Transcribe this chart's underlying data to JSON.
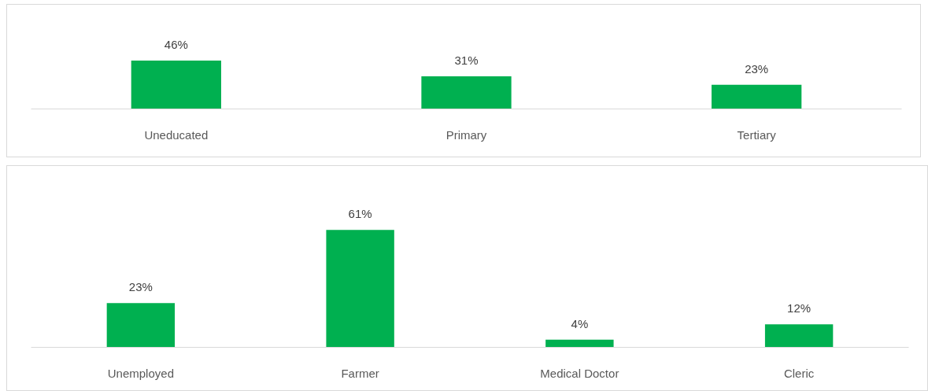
{
  "chart_data": [
    {
      "type": "bar",
      "categories": [
        "Uneducated",
        "Primary",
        "Tertiary"
      ],
      "values": [
        46,
        31,
        23
      ],
      "value_labels": [
        "46%",
        "31%",
        "23%"
      ],
      "color": "#00b050",
      "tick_labels": "x"
    },
    {
      "type": "bar",
      "categories": [
        "Unemployed",
        "Farmer",
        "Medical Doctor",
        "Cleric"
      ],
      "values": [
        23,
        61,
        4,
        12
      ],
      "value_labels": [
        "23%",
        "61%",
        "4%",
        "12%"
      ],
      "color": "#00b050",
      "tick_labels": "x"
    }
  ]
}
